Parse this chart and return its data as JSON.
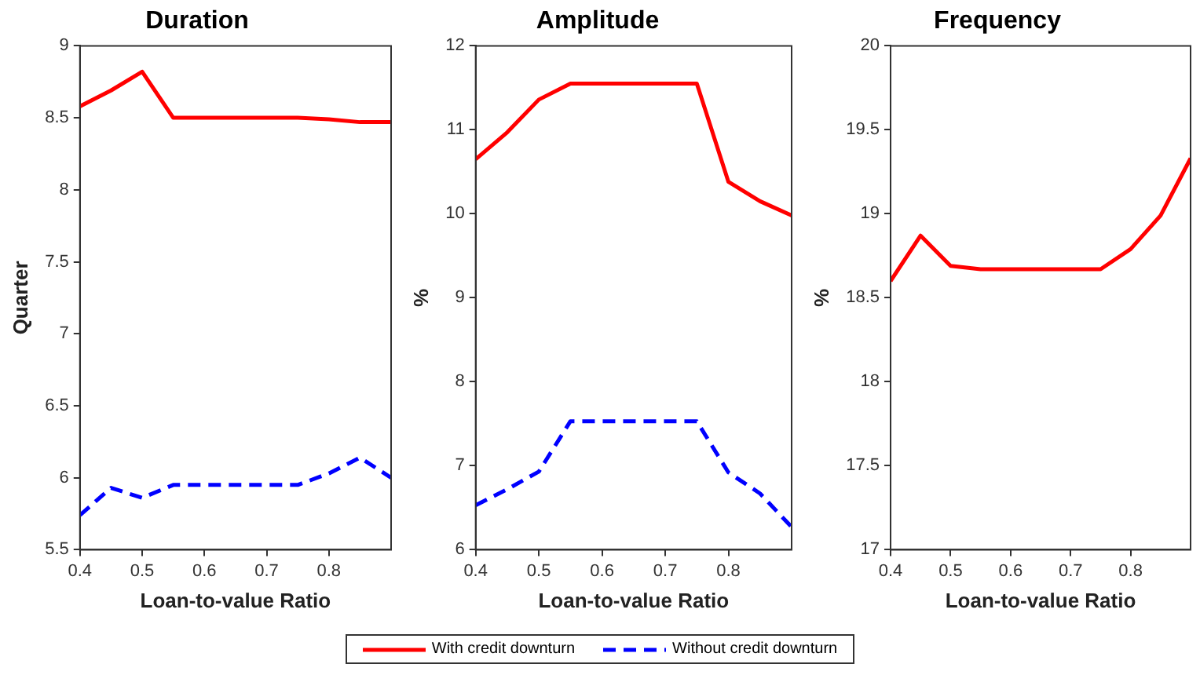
{
  "chart_data": [
    {
      "type": "line",
      "title": "Duration",
      "xlabel": "Loan-to-value Ratio",
      "ylabel": "Quarter",
      "x": [
        0.4,
        0.45,
        0.5,
        0.55,
        0.6,
        0.65,
        0.7,
        0.75,
        0.8,
        0.85,
        0.9
      ],
      "xlim": [
        0.4,
        0.9
      ],
      "xticks": [
        0.4,
        0.5,
        0.6,
        0.7,
        0.8
      ],
      "ylim": [
        5.5,
        9
      ],
      "yticks": [
        5.5,
        6,
        6.5,
        7,
        7.5,
        8,
        8.5,
        9
      ],
      "grid": false,
      "legend": "bottom",
      "marker": "none",
      "series": [
        {
          "name": "With credit downturn",
          "color": "#ff0000",
          "line_style": "solid",
          "values": [
            8.58,
            8.69,
            8.82,
            8.5,
            8.5,
            8.5,
            8.5,
            8.5,
            8.49,
            8.47,
            8.47
          ]
        },
        {
          "name": "Without credit downturn",
          "color": "#0000ff",
          "line_style": "dashed",
          "values": [
            5.74,
            5.93,
            5.86,
            5.95,
            5.95,
            5.95,
            5.95,
            5.95,
            6.03,
            6.14,
            6.0
          ]
        }
      ]
    },
    {
      "type": "line",
      "title": "Amplitude",
      "xlabel": "Loan-to-value Ratio",
      "ylabel": "%",
      "x": [
        0.4,
        0.45,
        0.5,
        0.55,
        0.6,
        0.65,
        0.7,
        0.75,
        0.8,
        0.85,
        0.9
      ],
      "xlim": [
        0.4,
        0.9
      ],
      "xticks": [
        0.4,
        0.5,
        0.6,
        0.7,
        0.8
      ],
      "ylim": [
        6,
        12
      ],
      "yticks": [
        6,
        7,
        8,
        9,
        10,
        11,
        12
      ],
      "grid": false,
      "marker": "none",
      "series": [
        {
          "color": "#ff0000",
          "line_style": "solid",
          "values": [
            10.65,
            10.97,
            11.36,
            11.55,
            11.55,
            11.55,
            11.55,
            11.55,
            10.38,
            10.15,
            9.98
          ]
        },
        {
          "color": "#0000ff",
          "line_style": "dashed",
          "values": [
            6.53,
            6.72,
            6.93,
            7.53,
            7.53,
            7.53,
            7.53,
            7.53,
            6.92,
            6.67,
            6.27
          ]
        }
      ]
    },
    {
      "type": "line",
      "title": "Frequency",
      "xlabel": "Loan-to-value Ratio",
      "ylabel": "%",
      "x": [
        0.4,
        0.45,
        0.5,
        0.55,
        0.6,
        0.65,
        0.7,
        0.75,
        0.8,
        0.85,
        0.9
      ],
      "xlim": [
        0.4,
        0.9
      ],
      "xticks": [
        0.4,
        0.5,
        0.6,
        0.7,
        0.8
      ],
      "ylim": [
        17,
        20
      ],
      "yticks": [
        17,
        17.5,
        18,
        18.5,
        19,
        19.5,
        20
      ],
      "grid": false,
      "marker": "none",
      "series": [
        {
          "color": "#ff0000",
          "line_style": "solid",
          "values": [
            18.6,
            18.87,
            18.69,
            18.67,
            18.67,
            18.67,
            18.67,
            18.67,
            18.79,
            18.99,
            19.33
          ]
        }
      ]
    }
  ]
}
